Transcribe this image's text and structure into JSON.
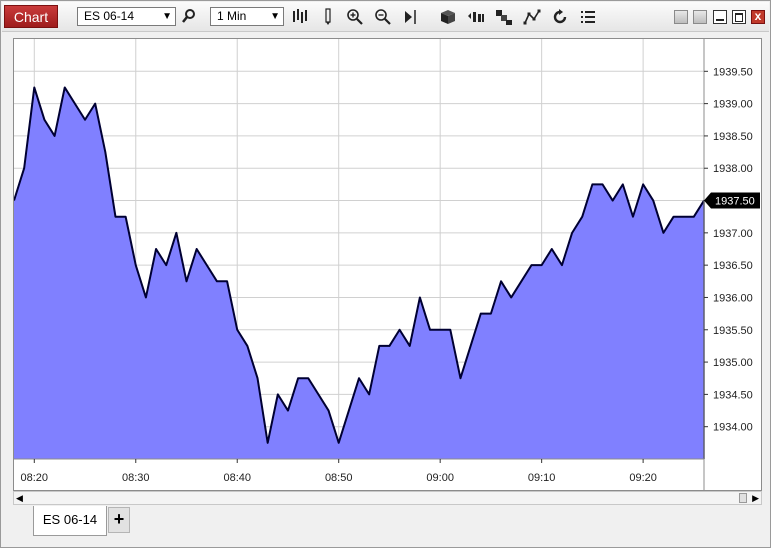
{
  "toolbar": {
    "chart_label": "Chart",
    "instrument": "ES 06-14",
    "interval": "1 Min",
    "icons": [
      "search-icon",
      "bar-type-icon",
      "pencil-icon",
      "zoom-in-icon",
      "zoom-out-icon",
      "cursor-icon",
      "box-icon",
      "bar-spacing-icon",
      "steps-icon",
      "drawing-tools-icon",
      "reload-icon",
      "list-icon"
    ]
  },
  "window": {
    "buttons": [
      "minimize",
      "restore",
      "maximize",
      "close"
    ],
    "close_label": "x"
  },
  "chart_data": {
    "type": "area",
    "title": "",
    "x_ticks": [
      "08:20",
      "08:30",
      "08:40",
      "08:50",
      "09:00",
      "09:10",
      "09:20"
    ],
    "y_ticks": [
      "1939.50",
      "1939.00",
      "1938.50",
      "1938.00",
      "1937.50",
      "1937.00",
      "1936.50",
      "1936.00",
      "1935.50",
      "1935.00",
      "1934.50",
      "1934.00"
    ],
    "ylim": [
      1933.5,
      1940.0
    ],
    "x_start": "08:18",
    "x_end": "09:26",
    "current_price_label": "1937.50",
    "fill_color": "#8080ff",
    "line_color": "#000033",
    "grid": true,
    "values": [
      1937.5,
      1938.0,
      1939.25,
      1938.75,
      1938.5,
      1939.25,
      1939.0,
      1938.75,
      1939.0,
      1938.25,
      1937.25,
      1937.25,
      1936.5,
      1936.0,
      1936.75,
      1936.5,
      1937.0,
      1936.25,
      1936.75,
      1936.5,
      1936.25,
      1936.25,
      1935.5,
      1935.25,
      1934.75,
      1933.75,
      1934.5,
      1934.25,
      1934.75,
      1934.75,
      1934.5,
      1934.25,
      1933.75,
      1934.25,
      1934.75,
      1934.5,
      1935.25,
      1935.25,
      1935.5,
      1935.25,
      1936.0,
      1935.5,
      1935.5,
      1935.5,
      1934.75,
      1935.25,
      1935.75,
      1935.75,
      1936.25,
      1936.0,
      1936.25,
      1936.5,
      1936.5,
      1936.75,
      1936.5,
      1937.0,
      1937.25,
      1937.75,
      1937.75,
      1937.5,
      1937.75,
      1937.25,
      1937.75,
      1937.5,
      1937.0,
      1937.25,
      1937.25,
      1937.25,
      1937.5
    ]
  },
  "tabs": [
    {
      "label": "ES 06-14"
    }
  ],
  "add_tab_label": "+"
}
